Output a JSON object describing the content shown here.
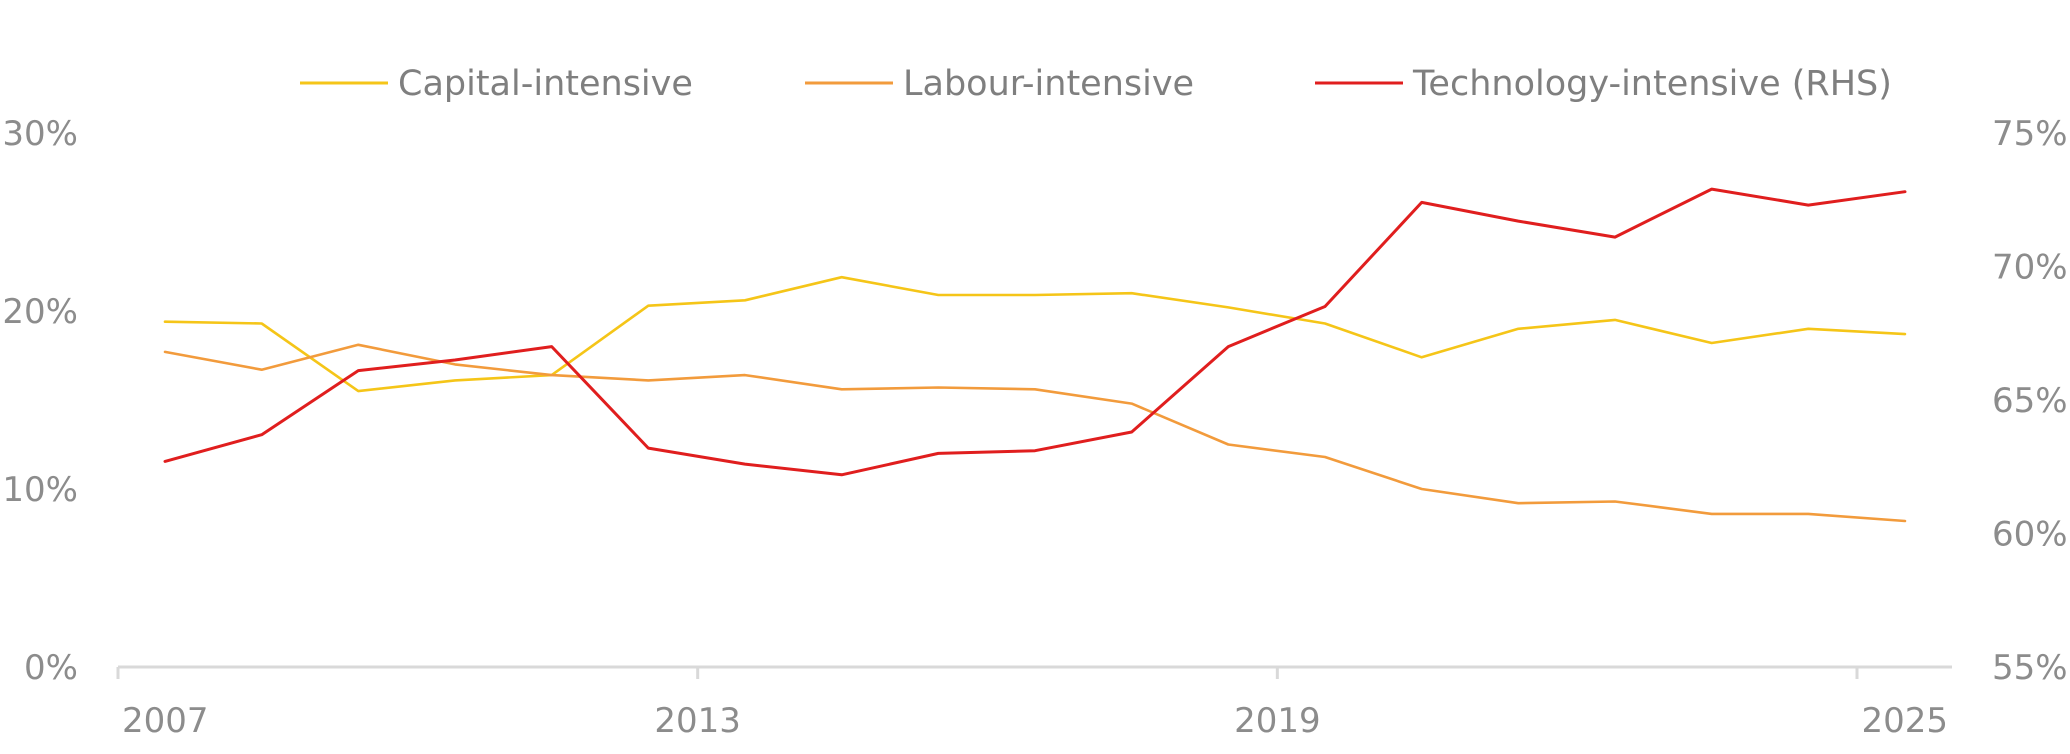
{
  "chart_data": {
    "type": "line",
    "title": "",
    "xlabel": "",
    "ylabel": "",
    "x": [
      2007,
      2008,
      2009,
      2010,
      2011,
      2012,
      2013,
      2014,
      2015,
      2016,
      2017,
      2018,
      2019,
      2020,
      2021,
      2022,
      2023,
      2024,
      2025
    ],
    "x_ticks": [
      "2007",
      "2013",
      "2019",
      "2025"
    ],
    "y_left": {
      "range": [
        0,
        30
      ],
      "ticks": [
        "0%",
        "10%",
        "20%",
        "30%"
      ]
    },
    "y_right": {
      "range": [
        55,
        75
      ],
      "ticks": [
        "55%",
        "60%",
        "65%",
        "70%",
        "75%"
      ]
    },
    "legend_position": "top-center",
    "grid": false,
    "series": [
      {
        "name": "Capital-intensive",
        "axis": "left",
        "color": "#f5c518",
        "values": [
          19.4,
          19.3,
          15.5,
          16.1,
          16.4,
          20.3,
          20.6,
          21.9,
          20.9,
          20.9,
          21.0,
          20.2,
          19.3,
          17.4,
          19.0,
          19.5,
          18.2,
          19.0,
          18.7
        ]
      },
      {
        "name": "Labour-intensive",
        "axis": "left",
        "color": "#f29b3c",
        "values": [
          17.7,
          16.7,
          18.1,
          17.0,
          16.4,
          16.1,
          16.4,
          15.6,
          15.7,
          15.6,
          14.8,
          12.5,
          11.8,
          10.0,
          9.2,
          9.3,
          8.6,
          8.6,
          8.2
        ]
      },
      {
        "name": "Technology-intensive (RHS)",
        "axis": "right",
        "color": "#e01e1e",
        "values": [
          62.7,
          63.7,
          66.1,
          66.5,
          67.0,
          63.2,
          62.6,
          62.2,
          63.0,
          63.1,
          63.8,
          67.0,
          68.5,
          72.4,
          71.7,
          71.1,
          72.9,
          72.3,
          72.8
        ]
      }
    ]
  }
}
